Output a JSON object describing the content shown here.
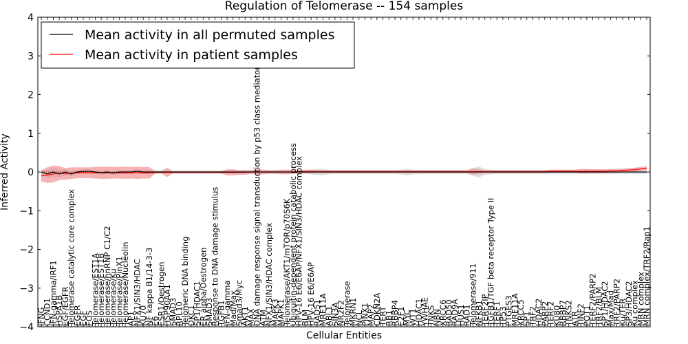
{
  "chart_data": {
    "type": "line",
    "title": "Regulation of Telomerase -- 154 samples",
    "xlabel": "Cellular Entities",
    "ylabel": "Inferred Activity",
    "ylim": [
      -4,
      4
    ],
    "yticks": [
      -4,
      -3,
      -2,
      -1,
      0,
      1,
      2,
      3,
      4
    ],
    "ytick_labels": [
      "−4",
      "−3",
      "−2",
      "−1",
      "0",
      "1",
      "2",
      "3",
      "4"
    ],
    "grid": false,
    "legend_position": "top-left",
    "categories": [
      "IFNG",
      "CCND1",
      "IFN-gamma/IRF1",
      "HSPA1B",
      "EGF/EGFR",
      "Telomerase catalytic core complex",
      "EGFR",
      "EGF",
      "FOS",
      "Telomerase/EST1A",
      "Telomerase/EST1B",
      "Telomerase/hnRNP C1/C2",
      "Telomerase/Ku",
      "Telomerase/PinX1",
      "Telomerase/Nucleolin",
      "AP1",
      "NFX1/SIN3/HDAC",
      "KU70",
      "NF kappa B1/14-3-3",
      "E6",
      "ESR1/Oestrogen",
      "HSP90AA1",
      "SMAD3",
      "RPL10",
      "Telomeric DNA binding",
      "DKC1",
      "SP1/HDAC1",
      "ER alpha/Oestrogen",
      "SMAD3",
      "Response to DNA damage stimulus",
      "TGFB1",
      "IFN-gamma",
      "Mad/Max",
      "Smad3/Myc",
      "AKT1",
      "MAX",
      "DNA damage response signal transduction by p53 class mediator",
      "ATM",
      "NFX1/SIN3/HDAC complex",
      "MAPK3",
      "MAPK1",
      "Telomerase/AKT1/mTOR/p70S6K",
      "Ubiquitin-dependent protein catabolic process",
      "HPV-16 E6/E6AP/NFX1/SIN3/HDAC complex",
      "BLM",
      "HPV-16 E6/E6AP",
      "RAD51",
      "MRE11A",
      "ABL1",
      "SIN3A",
      "NR2F2",
      "Telomerase",
      "MKRN1",
      "NCL",
      "PINX1",
      "MAP2",
      "CDKN2A",
      "TERT",
      "RB1",
      "RBBP4",
      "E2F1",
      "MYC",
      "WT1",
      "HDAC1",
      "YWHAE",
      "TNKS",
      "NBN",
      "XRCC6",
      "RAD50",
      "RAD9A",
      "HUS1",
      "RAD1",
      "Telomerase/911",
      "NFKB1",
      "TERF2IP",
      "TGFB1/TGF beta receptor Type II",
      "TERF1",
      "TP53",
      "PTGES3",
      "MRE11A",
      "XRCC5",
      "SP1",
      "TRF2",
      "HDAC2",
      "PARP2",
      "TERF2",
      "KU80",
      "RBBP7",
      "TNKS2",
      "ATR",
      "TINF2",
      "POT1",
      "TERF2/PARP2",
      "TRF2/BLM",
      "SP1/HDAC2",
      "Max/Mad",
      "TRF2/PARP2",
      "Ku/TER",
      "SP3/HDAC2",
      "Ku complex",
      "MRN complex",
      "MRN complex/TRF2/Rap1"
    ],
    "series": [
      {
        "name": "Mean activity in all permuted samples",
        "color": "#000000",
        "band_color": "#d3d3d3",
        "values": [
          0.0,
          -0.05,
          0.0,
          -0.05,
          0.0,
          -0.05,
          0.0,
          0.02,
          0.02,
          0.0,
          -0.02,
          0.0,
          -0.03,
          0.0,
          0.0,
          0.0,
          0.02,
          0.0,
          0.0,
          0.0,
          0.0,
          0.0,
          0.0,
          0.0,
          0.0,
          0.0,
          0.0,
          0.0,
          0.0,
          0.0,
          0.0,
          0.0,
          0.0,
          0.0,
          0.0,
          0.0,
          0.0,
          0.0,
          0.0,
          0.0,
          0.0,
          0.0,
          0.0,
          0.0,
          0.0,
          0.0,
          0.0,
          0.0,
          0.0,
          0.0,
          0.0,
          0.0,
          0.0,
          0.0,
          0.0,
          0.0,
          0.0,
          0.0,
          0.0,
          0.0,
          0.0,
          0.0,
          0.0,
          0.0,
          0.0,
          0.0,
          0.0,
          0.0,
          0.0,
          0.0,
          0.0,
          0.0,
          0.0,
          0.0,
          0.0,
          0.0,
          0.0,
          0.0,
          0.0,
          0.0,
          0.0,
          0.0,
          0.0,
          0.0,
          0.0,
          0.0,
          0.0,
          0.0,
          0.0,
          0.0,
          0.0,
          0.0,
          0.0,
          0.0,
          0.0,
          0.0,
          0.0,
          0.0,
          0.0,
          0.0,
          0.0,
          0.0
        ],
        "spread": [
          0.05,
          0.1,
          0.12,
          0.1,
          0.08,
          0.06,
          0.05,
          0.05,
          0.05,
          0.05,
          0.05,
          0.05,
          0.05,
          0.05,
          0.05,
          0.05,
          0.05,
          0.05,
          0.05,
          0.05,
          0.04,
          0.04,
          0.04,
          0.04,
          0.04,
          0.04,
          0.04,
          0.04,
          0.04,
          0.04,
          0.04,
          0.04,
          0.04,
          0.04,
          0.04,
          0.04,
          0.04,
          0.04,
          0.04,
          0.04,
          0.04,
          0.04,
          0.04,
          0.04,
          0.04,
          0.06,
          0.08,
          0.08,
          0.06,
          0.05,
          0.05,
          0.05,
          0.05,
          0.05,
          0.05,
          0.05,
          0.05,
          0.05,
          0.05,
          0.05,
          0.06,
          0.08,
          0.06,
          0.05,
          0.05,
          0.05,
          0.05,
          0.05,
          0.05,
          0.05,
          0.05,
          0.05,
          0.1,
          0.14,
          0.08,
          0.06,
          0.05,
          0.05,
          0.05,
          0.05,
          0.05,
          0.05,
          0.05,
          0.05,
          0.05,
          0.05,
          0.05,
          0.05,
          0.05,
          0.05,
          0.05,
          0.05,
          0.05,
          0.05,
          0.05,
          0.05,
          0.05,
          0.05,
          0.05,
          0.05,
          0.05,
          0.05
        ]
      },
      {
        "name": "Mean activity in patient samples",
        "color": "#ff0000",
        "band_color": "#f08080",
        "values": [
          -0.1,
          -0.08,
          -0.05,
          -0.03,
          -0.05,
          -0.03,
          -0.02,
          -0.02,
          -0.02,
          -0.02,
          -0.02,
          -0.02,
          -0.02,
          -0.02,
          -0.02,
          -0.02,
          -0.02,
          -0.02,
          -0.02,
          -0.01,
          -0.01,
          -0.01,
          -0.01,
          -0.01,
          -0.01,
          -0.01,
          -0.01,
          -0.01,
          -0.01,
          -0.01,
          -0.01,
          -0.01,
          -0.01,
          -0.01,
          -0.01,
          0.0,
          0.0,
          0.0,
          0.0,
          0.0,
          0.0,
          0.0,
          0.0,
          0.01,
          0.01,
          0.01,
          0.01,
          0.01,
          0.01,
          0.01,
          0.01,
          0.01,
          0.01,
          0.01,
          0.01,
          0.01,
          0.01,
          0.01,
          0.01,
          0.01,
          0.01,
          0.01,
          0.01,
          0.01,
          0.01,
          0.01,
          0.01,
          0.01,
          0.01,
          0.01,
          0.01,
          0.01,
          0.01,
          0.01,
          0.01,
          0.01,
          0.01,
          0.01,
          0.01,
          0.01,
          0.01,
          0.01,
          0.01,
          0.01,
          0.01,
          0.02,
          0.02,
          0.02,
          0.02,
          0.02,
          0.02,
          0.02,
          0.02,
          0.02,
          0.02,
          0.03,
          0.03,
          0.04,
          0.05,
          0.06,
          0.08,
          0.1
        ],
        "spread": [
          0.15,
          0.2,
          0.22,
          0.18,
          0.15,
          0.15,
          0.14,
          0.14,
          0.14,
          0.15,
          0.16,
          0.16,
          0.15,
          0.15,
          0.16,
          0.15,
          0.16,
          0.15,
          0.15,
          0.03,
          0.03,
          0.12,
          0.03,
          0.03,
          0.03,
          0.03,
          0.03,
          0.03,
          0.03,
          0.03,
          0.03,
          0.08,
          0.08,
          0.06,
          0.06,
          0.05,
          0.08,
          0.06,
          0.05,
          0.05,
          0.06,
          0.06,
          0.05,
          0.05,
          0.05,
          0.05,
          0.04,
          0.04,
          0.04,
          0.04,
          0.04,
          0.04,
          0.04,
          0.04,
          0.04,
          0.04,
          0.04,
          0.04,
          0.04,
          0.04,
          0.04,
          0.04,
          0.04,
          0.04,
          0.04,
          0.04,
          0.04,
          0.04,
          0.04,
          0.04,
          0.04,
          0.04,
          0.08,
          0.06,
          0.04,
          0.04,
          0.04,
          0.04,
          0.04,
          0.04,
          0.04,
          0.04,
          0.04,
          0.04,
          0.04,
          0.04,
          0.04,
          0.04,
          0.04,
          0.04,
          0.06,
          0.06,
          0.05,
          0.05,
          0.05,
          0.05,
          0.05,
          0.05,
          0.05,
          0.05,
          0.05,
          0.05
        ]
      }
    ]
  }
}
